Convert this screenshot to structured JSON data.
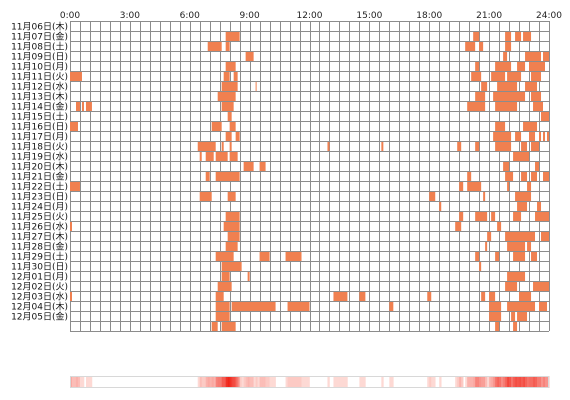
{
  "chart_data": {
    "type": "heatmap",
    "title": "",
    "xlabel": "",
    "ylabel": "",
    "x_unit": "hour",
    "xlim": [
      0,
      24
    ],
    "x_ticks": [
      "0:00",
      "3:00",
      "6:00",
      "9:00",
      "12:00",
      "15:00",
      "18:00",
      "21:00",
      "24:00"
    ],
    "grid": "on",
    "colors": {
      "mark": "#f08050",
      "grid": "#8c8c8c",
      "density_low": "#fff0ec",
      "density_high": "#f02418"
    },
    "days": [
      {
        "label": "11月06日(木)",
        "intervals": []
      },
      {
        "label": "11月07日(金)",
        "intervals": [
          [
            7.8,
            8.5
          ],
          [
            20.2,
            20.5
          ],
          [
            21.8,
            22.1
          ],
          [
            22.3,
            22.6
          ],
          [
            22.7,
            23.1
          ]
        ]
      },
      {
        "label": "11月08日(土)",
        "intervals": [
          [
            6.9,
            7.6
          ],
          [
            7.8,
            8.0
          ],
          [
            19.8,
            20.3
          ],
          [
            20.5,
            20.7
          ],
          [
            21.8,
            22.1
          ]
        ]
      },
      {
        "label": "11月09日(日)",
        "intervals": [
          [
            8.8,
            9.2
          ],
          [
            21.7,
            21.9
          ],
          [
            22.8,
            23.6
          ],
          [
            23.7,
            24.0
          ]
        ]
      },
      {
        "label": "11月10日(月)",
        "intervals": [
          [
            7.8,
            8.3
          ],
          [
            20.3,
            20.5
          ],
          [
            21.3,
            22.1
          ],
          [
            22.4,
            22.8
          ],
          [
            23.0,
            23.8
          ]
        ]
      },
      {
        "label": "11月11日(火)",
        "intervals": [
          [
            0,
            0.6
          ],
          [
            7.7,
            8.0
          ],
          [
            8.2,
            8.4
          ],
          [
            20.1,
            20.6
          ],
          [
            21.1,
            21.8
          ],
          [
            21.9,
            22.6
          ],
          [
            23.1,
            23.6
          ]
        ]
      },
      {
        "label": "11月12日(水)",
        "intervals": [
          [
            7.6,
            8.4
          ],
          [
            9.3,
            9.35
          ],
          [
            20.6,
            20.9
          ],
          [
            21.4,
            22.4
          ],
          [
            22.8,
            23.4
          ]
        ]
      },
      {
        "label": "11月13日(木)",
        "intervals": [
          [
            7.4,
            8.3
          ],
          [
            20.3,
            20.8
          ],
          [
            21.2,
            22.8
          ],
          [
            23.1,
            23.6
          ]
        ]
      },
      {
        "label": "11月14日(金)",
        "intervals": [
          [
            0.3,
            0.5
          ],
          [
            0.6,
            0.7
          ],
          [
            0.8,
            1.1
          ],
          [
            7.6,
            8.2
          ],
          [
            19.9,
            20.8
          ],
          [
            21.3,
            22.4
          ],
          [
            23.2,
            23.7
          ]
        ]
      },
      {
        "label": "11月15日(土)",
        "intervals": [
          [
            7.9,
            8.1
          ],
          [
            23.6,
            24.0
          ]
        ]
      },
      {
        "label": "11月16日(日)",
        "intervals": [
          [
            0,
            0.4
          ],
          [
            7.1,
            7.6
          ],
          [
            8.0,
            8.3
          ],
          [
            21.3,
            21.8
          ],
          [
            22.7,
            23.4
          ]
        ]
      },
      {
        "label": "11月17日(月)",
        "intervals": [
          [
            7.8,
            8.1
          ],
          [
            8.3,
            8.5
          ],
          [
            21.2,
            22.1
          ],
          [
            22.3,
            22.6
          ],
          [
            23.0,
            23.3
          ],
          [
            23.5,
            23.6
          ],
          [
            23.7,
            23.8
          ],
          [
            23.9,
            24.0
          ]
        ]
      },
      {
        "label": "11月18日(火)",
        "intervals": [
          [
            6.4,
            7.3
          ],
          [
            7.6,
            7.7
          ],
          [
            8.0,
            8.1
          ],
          [
            12.9,
            13.0
          ],
          [
            15.6,
            15.7
          ],
          [
            19.4,
            19.6
          ],
          [
            20.3,
            20.5
          ],
          [
            21.3,
            22.1
          ],
          [
            22.6,
            22.9
          ],
          [
            23.1,
            23.5
          ]
        ]
      },
      {
        "label": "11月19日(水)",
        "intervals": [
          [
            6.5,
            6.6
          ],
          [
            6.8,
            7.2
          ],
          [
            7.3,
            7.9
          ],
          [
            8.0,
            8.4
          ],
          [
            22.2,
            23.0
          ]
        ]
      },
      {
        "label": "11月20日(木)",
        "intervals": [
          [
            8.7,
            9.2
          ],
          [
            9.5,
            9.8
          ],
          [
            21.7,
            22.0
          ],
          [
            23.3,
            23.5
          ]
        ]
      },
      {
        "label": "11月21日(金)",
        "intervals": [
          [
            6.8,
            7.0
          ],
          [
            7.3,
            8.5
          ],
          [
            19.9,
            20.1
          ],
          [
            21.8,
            22.2
          ],
          [
            22.6,
            22.9
          ],
          [
            23.1,
            23.4
          ],
          [
            23.7,
            24.0
          ]
        ]
      },
      {
        "label": "11月22日(土)",
        "intervals": [
          [
            0,
            0.5
          ],
          [
            19.5,
            19.7
          ],
          [
            19.9,
            20.6
          ],
          [
            21.9,
            22.0
          ],
          [
            22.9,
            23.1
          ]
        ]
      },
      {
        "label": "11月23日(日)",
        "intervals": [
          [
            6.5,
            7.1
          ],
          [
            7.9,
            8.3
          ],
          [
            18.0,
            18.3
          ],
          [
            20.7,
            20.8
          ],
          [
            22.3,
            23.1
          ]
        ]
      },
      {
        "label": "11月24日(月)",
        "intervals": [
          [
            18.5,
            18.6
          ],
          [
            22.4,
            22.9
          ],
          [
            23.4,
            23.6
          ]
        ]
      },
      {
        "label": "11月25日(火)",
        "intervals": [
          [
            7.8,
            8.5
          ],
          [
            19.5,
            19.7
          ],
          [
            20.3,
            20.9
          ],
          [
            21.1,
            21.3
          ],
          [
            22.2,
            22.6
          ],
          [
            23.3,
            24.0
          ]
        ]
      },
      {
        "label": "11月26日(水)",
        "intervals": [
          [
            0,
            0.1
          ],
          [
            7.7,
            8.5
          ],
          [
            19.3,
            19.6
          ],
          [
            21.4,
            21.6
          ]
        ]
      },
      {
        "label": "11月27日(木)",
        "intervals": [
          [
            7.9,
            8.5
          ],
          [
            20.9,
            21.1
          ],
          [
            21.8,
            23.3
          ],
          [
            23.6,
            24.0
          ]
        ]
      },
      {
        "label": "11月28日(金)",
        "intervals": [
          [
            7.8,
            8.4
          ],
          [
            20.8,
            20.9
          ],
          [
            21.9,
            22.8
          ],
          [
            22.9,
            23.1
          ]
        ]
      },
      {
        "label": "11月29日(土)",
        "intervals": [
          [
            7.3,
            8.2
          ],
          [
            9.5,
            10.0
          ],
          [
            10.8,
            11.6
          ],
          [
            20.3,
            20.5
          ],
          [
            21.3,
            21.5
          ],
          [
            22.2,
            22.8
          ],
          [
            23.1,
            23.4
          ]
        ]
      },
      {
        "label": "11月30日(日)",
        "intervals": [
          [
            7.6,
            8.6
          ],
          [
            20.5,
            20.6
          ]
        ]
      },
      {
        "label": "12月01日(月)",
        "intervals": [
          [
            7.6,
            8.0
          ],
          [
            8.9,
            9.0
          ],
          [
            21.9,
            22.8
          ]
        ]
      },
      {
        "label": "12月02日(火)",
        "intervals": [
          [
            7.4,
            8.1
          ],
          [
            21.8,
            22.4
          ],
          [
            23.2,
            24.0
          ]
        ]
      },
      {
        "label": "12月03日(水)",
        "intervals": [
          [
            0,
            0.1
          ],
          [
            7.3,
            7.7
          ],
          [
            13.2,
            13.9
          ],
          [
            14.5,
            14.8
          ],
          [
            17.9,
            18.1
          ],
          [
            20.6,
            20.8
          ],
          [
            21.0,
            21.3
          ],
          [
            22.5,
            23.1
          ]
        ]
      },
      {
        "label": "12月04日(木)",
        "intervals": [
          [
            7.3,
            8.0
          ],
          [
            8.1,
            10.3
          ],
          [
            10.9,
            12.0
          ],
          [
            16.0,
            16.2
          ],
          [
            21.0,
            21.6
          ],
          [
            21.9,
            23.3
          ],
          [
            23.5,
            23.9
          ]
        ]
      },
      {
        "label": "12月05日(金)",
        "intervals": [
          [
            7.3,
            8.0
          ],
          [
            21.0,
            21.6
          ],
          [
            22.1,
            22.3
          ],
          [
            22.4,
            22.9
          ]
        ]
      },
      {
        "label": "",
        "intervals": [
          [
            7.1,
            7.4
          ],
          [
            7.6,
            8.3
          ],
          [
            21.3,
            21.5
          ],
          [
            22.2,
            22.4
          ]
        ]
      }
    ]
  }
}
